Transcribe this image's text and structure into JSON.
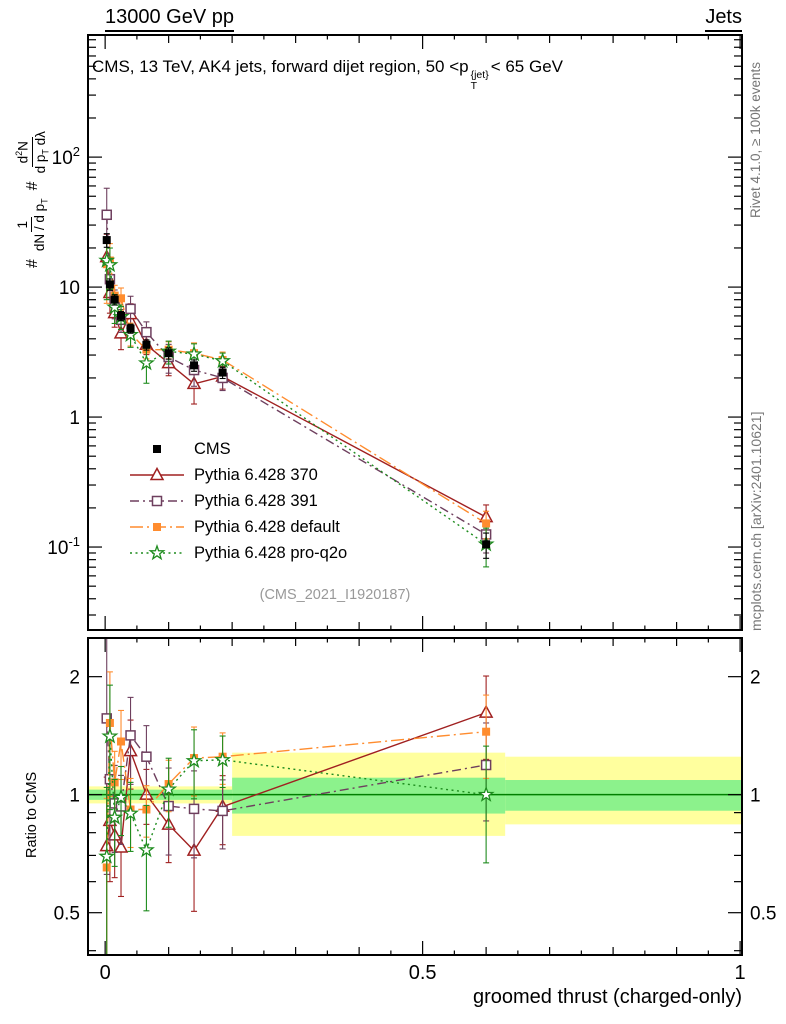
{
  "header": {
    "left": "13000 GeV pp",
    "right": "Jets"
  },
  "panel_title": {
    "pre": "CMS, 13 TeV, AK4 jets, forward dijet region, 50 <p",
    "sup": "{jet}",
    "sub": "T",
    "post": "< 65 GeV"
  },
  "ylabel_parts": {
    "hash1": "#",
    "num1": "1",
    "den1": "dN / d p",
    "den1_sub": "T",
    "hash2": "#",
    "num2_pre": "d",
    "num2_sup": "2",
    "num2_post": "N",
    "den2_pre": "d p",
    "den2_sub": "T",
    "den2_post": " dλ"
  },
  "ratio_ylabel": "Ratio to CMS",
  "xlabel": "groomed thrust (charged-only)",
  "watermark": "(CMS_2021_I1920187)",
  "side_notes": {
    "top": "Rivet 4.1.0, ≥ 100k events",
    "bottom": "mcplots.cern.ch [arXiv:2401.10621]"
  },
  "colors": {
    "cms": "#000000",
    "p370": "#a02020",
    "p391": "#6e3f5e",
    "pdefault": "#ff8c2e",
    "proq2o": "#1e8c1e",
    "band_yellow": "#ffff9e",
    "band_green": "#8cf28c",
    "ratio_line": "#008000",
    "frame": "#000000",
    "watermark": "#999999",
    "side_note": "#777777"
  },
  "chart_data": {
    "type": "line",
    "title": "CMS, 13 TeV, AK4 jets, forward dijet region, 50 < pT{jet} < 65 GeV",
    "xlabel": "groomed thrust (charged-only)",
    "ylabel": "# 1/(dN/dpT) d2N/(dpT dlambda)",
    "ratio_label": "Ratio to CMS",
    "x": [
      0.0025,
      0.0075,
      0.015,
      0.025,
      0.04,
      0.065,
      0.1,
      0.14,
      0.185,
      0.6
    ],
    "series": [
      {
        "name": "CMS",
        "color": "#000000",
        "marker": "square-filled",
        "line": "none",
        "values": [
          23,
          10.5,
          8.0,
          6.0,
          4.8,
          3.6,
          3.1,
          2.5,
          2.2,
          0.105
        ],
        "err_frac": [
          0.12,
          0.1,
          0.09,
          0.08,
          0.08,
          0.09,
          0.1,
          0.1,
          0.1,
          0.22
        ]
      },
      {
        "name": "Pythia 6.428 370",
        "color": "#a02020",
        "marker": "triangle-open",
        "line": "solid",
        "values": [
          17,
          9.0,
          6.3,
          4.4,
          6.2,
          3.6,
          2.6,
          1.8,
          2.05,
          0.17
        ],
        "err_frac": [
          0.5,
          0.3,
          0.22,
          0.25,
          0.2,
          0.16,
          0.2,
          0.3,
          0.2,
          0.24
        ]
      },
      {
        "name": "Pythia 6.428 391",
        "color": "#6e3f5e",
        "marker": "square-open",
        "line": "dashdot",
        "values": [
          36,
          11.5,
          7.6,
          5.6,
          6.8,
          4.5,
          2.9,
          2.3,
          2.0,
          0.125
        ],
        "err_frac": [
          0.6,
          0.3,
          0.25,
          0.2,
          0.25,
          0.2,
          0.25,
          0.25,
          0.2,
          0.28
        ]
      },
      {
        "name": "Pythia 6.428 default",
        "color": "#ff8c2e",
        "marker": "square-filled",
        "line": "dashdot-long",
        "values": [
          15,
          16,
          8.6,
          8.2,
          4.4,
          3.3,
          3.3,
          3.1,
          2.75,
          0.152
        ],
        "err_frac": [
          0.5,
          0.35,
          0.2,
          0.2,
          0.2,
          0.15,
          0.15,
          0.2,
          0.15,
          0.24
        ]
      },
      {
        "name": "Pythia 6.428 pro-q2o",
        "color": "#1e8c1e",
        "marker": "star-open",
        "line": "dotted",
        "values": [
          16,
          14.8,
          7.0,
          5.9,
          4.3,
          2.6,
          3.2,
          3.05,
          2.7,
          0.105
        ],
        "err_frac": [
          0.5,
          0.35,
          0.25,
          0.2,
          0.2,
          0.3,
          0.2,
          0.2,
          0.15,
          0.33
        ]
      }
    ],
    "main_axis": {
      "scale": "log",
      "ylim": [
        0.023,
        870
      ],
      "ticks": [
        {
          "text": "10",
          "sup": "2",
          "value": 100
        },
        {
          "text": "10",
          "value": 10
        },
        {
          "text": "1",
          "value": 1
        },
        {
          "text": "10",
          "sup": "-1",
          "value": 0.1
        }
      ]
    },
    "ratio_axis": {
      "scale": "log",
      "ylim": [
        0.39,
        2.51
      ],
      "ticks": [
        {
          "text": "2",
          "value": 2
        },
        {
          "text": "1",
          "value": 1
        },
        {
          "text": "0.5",
          "value": 0.5
        }
      ]
    },
    "x_axis": {
      "lim": [
        -0.027,
        1.003
      ],
      "ticks": [
        {
          "text": "0",
          "value": 0
        },
        {
          "text": "0.5",
          "value": 0.5
        },
        {
          "text": "1",
          "value": 1
        }
      ]
    },
    "ratio_bands": [
      {
        "x0": -0.027,
        "x1": 0.2,
        "yellow": [
          0.95,
          1.05
        ],
        "green": [
          0.97,
          1.03
        ]
      },
      {
        "x0": 0.2,
        "x1": 0.63,
        "yellow": [
          0.785,
          1.28
        ],
        "green": [
          0.895,
          1.105
        ]
      },
      {
        "x0": 0.63,
        "x1": 1.003,
        "yellow": [
          0.84,
          1.25
        ],
        "green": [
          0.91,
          1.09
        ]
      }
    ],
    "legend_position": "middle-left",
    "grid": false
  }
}
